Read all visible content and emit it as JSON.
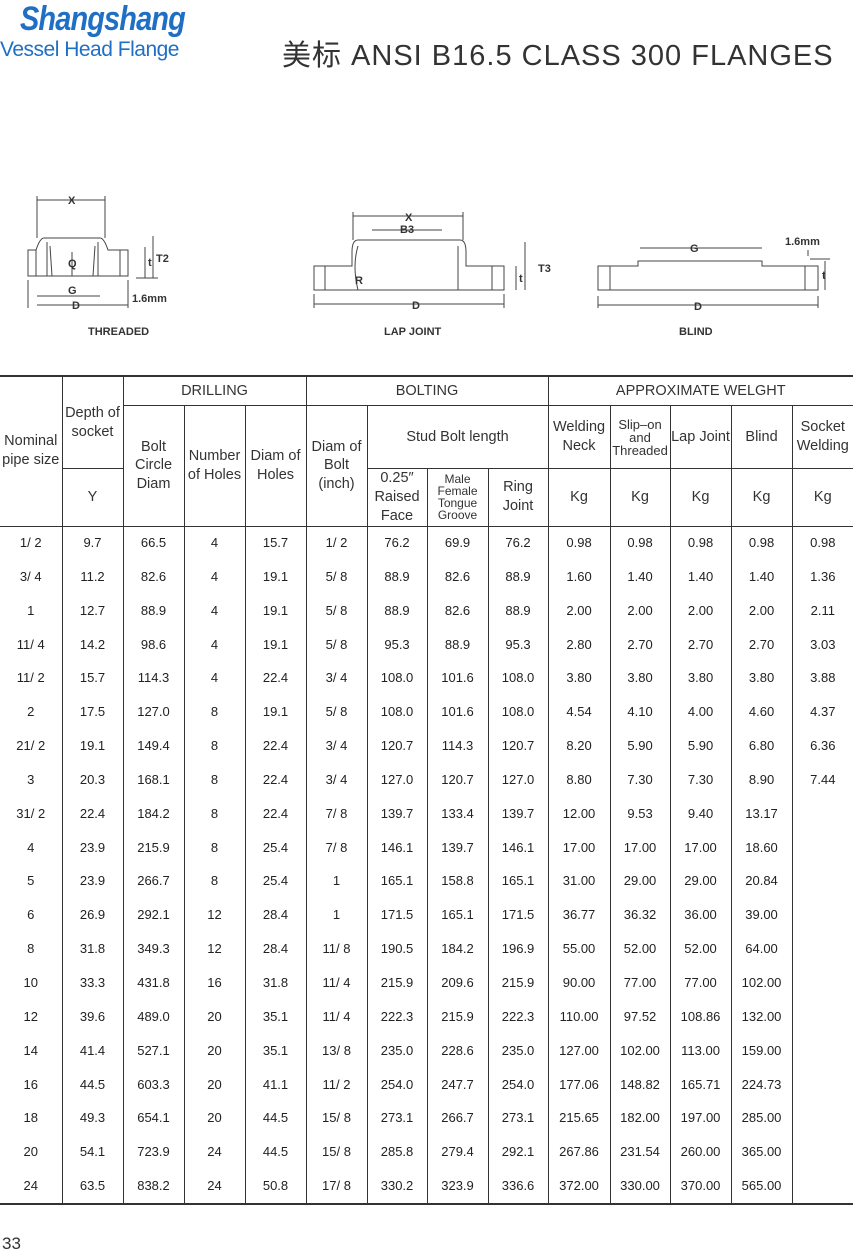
{
  "logo": {
    "brand": "Shangshang",
    "tagline_a": "Vessel Head",
    "tagline_b": "Flange"
  },
  "title": "美标 ANSI B16.5 CLASS 300 FLANGES",
  "diagrams": {
    "threaded": {
      "caption": "THREADED",
      "labels": [
        "X",
        "Q",
        "G",
        "D",
        "t",
        "T2",
        "1.6mm"
      ]
    },
    "lap_joint": {
      "caption": "LAP JOINT",
      "labels": [
        "X",
        "B3",
        "R",
        "D",
        "t",
        "T3"
      ]
    },
    "blind": {
      "caption": "BLIND",
      "labels": [
        "G",
        "1.6mm",
        "t",
        "D"
      ]
    }
  },
  "table": {
    "groups": {
      "nominal": "Nominal pipe size",
      "depth": "Depth of socket",
      "drilling": "DRILLING",
      "bolting": "BOLTING",
      "weight": "APPROXIMATE WELGHT"
    },
    "headers": {
      "y": "Y",
      "bolt_circle": "Bolt Circle Diam",
      "num_holes": "Number of Holes",
      "diam_holes": "Diam of Holes",
      "diam_bolt": "Diam of Bolt (inch)",
      "stud": "Stud Bolt length",
      "raised": "0.25″ Raised Face",
      "male": "Male Female Tongue Groove",
      "ring": "Ring Joint",
      "welding_neck": "Welding Neck",
      "slip_on": "Slip–on and Threaded",
      "lap": "Lap Joint",
      "blind": "Blind",
      "socket": "Socket Welding",
      "kg": "Kg"
    },
    "rows": [
      [
        "1/ 2",
        "9.7",
        "66.5",
        "4",
        "15.7",
        "1/ 2",
        "76.2",
        "69.9",
        "76.2",
        "0.98",
        "0.98",
        "0.98",
        "0.98",
        "0.98"
      ],
      [
        "3/ 4",
        "11.2",
        "82.6",
        "4",
        "19.1",
        "5/ 8",
        "88.9",
        "82.6",
        "88.9",
        "1.60",
        "1.40",
        "1.40",
        "1.40",
        "1.36"
      ],
      [
        "1",
        "12.7",
        "88.9",
        "4",
        "19.1",
        "5/ 8",
        "88.9",
        "82.6",
        "88.9",
        "2.00",
        "2.00",
        "2.00",
        "2.00",
        "2.11"
      ],
      [
        "11/ 4",
        "14.2",
        "98.6",
        "4",
        "19.1",
        "5/ 8",
        "95.3",
        "88.9",
        "95.3",
        "2.80",
        "2.70",
        "2.70",
        "2.70",
        "3.03"
      ],
      [
        "11/ 2",
        "15.7",
        "114.3",
        "4",
        "22.4",
        "3/ 4",
        "108.0",
        "101.6",
        "108.0",
        "3.80",
        "3.80",
        "3.80",
        "3.80",
        "3.88"
      ],
      [
        "2",
        "17.5",
        "127.0",
        "8",
        "19.1",
        "5/ 8",
        "108.0",
        "101.6",
        "108.0",
        "4.54",
        "4.10",
        "4.00",
        "4.60",
        "4.37"
      ],
      [
        "21/ 2",
        "19.1",
        "149.4",
        "8",
        "22.4",
        "3/ 4",
        "120.7",
        "114.3",
        "120.7",
        "8.20",
        "5.90",
        "5.90",
        "6.80",
        "6.36"
      ],
      [
        "3",
        "20.3",
        "168.1",
        "8",
        "22.4",
        "3/ 4",
        "127.0",
        "120.7",
        "127.0",
        "8.80",
        "7.30",
        "7.30",
        "8.90",
        "7.44"
      ],
      [
        "31/ 2",
        "22.4",
        "184.2",
        "8",
        "22.4",
        "7/ 8",
        "139.7",
        "133.4",
        "139.7",
        "12.00",
        "9.53",
        "9.40",
        "13.17",
        ""
      ],
      [
        "4",
        "23.9",
        "215.9",
        "8",
        "25.4",
        "7/ 8",
        "146.1",
        "139.7",
        "146.1",
        "17.00",
        "17.00",
        "17.00",
        "18.60",
        ""
      ],
      [
        "5",
        "23.9",
        "266.7",
        "8",
        "25.4",
        "1",
        "165.1",
        "158.8",
        "165.1",
        "31.00",
        "29.00",
        "29.00",
        "20.84",
        ""
      ],
      [
        "6",
        "26.9",
        "292.1",
        "12",
        "28.4",
        "1",
        "171.5",
        "165.1",
        "171.5",
        "36.77",
        "36.32",
        "36.00",
        "39.00",
        ""
      ],
      [
        "8",
        "31.8",
        "349.3",
        "12",
        "28.4",
        "11/ 8",
        "190.5",
        "184.2",
        "196.9",
        "55.00",
        "52.00",
        "52.00",
        "64.00",
        ""
      ],
      [
        "10",
        "33.3",
        "431.8",
        "16",
        "31.8",
        "11/ 4",
        "215.9",
        "209.6",
        "215.9",
        "90.00",
        "77.00",
        "77.00",
        "102.00",
        ""
      ],
      [
        "12",
        "39.6",
        "489.0",
        "20",
        "35.1",
        "11/ 4",
        "222.3",
        "215.9",
        "222.3",
        "110.00",
        "97.52",
        "108.86",
        "132.00",
        ""
      ],
      [
        "14",
        "41.4",
        "527.1",
        "20",
        "35.1",
        "13/ 8",
        "235.0",
        "228.6",
        "235.0",
        "127.00",
        "102.00",
        "113.00",
        "159.00",
        ""
      ],
      [
        "16",
        "44.5",
        "603.3",
        "20",
        "41.1",
        "11/ 2",
        "254.0",
        "247.7",
        "254.0",
        "177.06",
        "148.82",
        "165.71",
        "224.73",
        ""
      ],
      [
        "18",
        "49.3",
        "654.1",
        "20",
        "44.5",
        "15/ 8",
        "273.1",
        "266.7",
        "273.1",
        "215.65",
        "182.00",
        "197.00",
        "285.00",
        ""
      ],
      [
        "20",
        "54.1",
        "723.9",
        "24",
        "44.5",
        "15/ 8",
        "285.8",
        "279.4",
        "292.1",
        "267.86",
        "231.54",
        "260.00",
        "365.00",
        ""
      ],
      [
        "24",
        "63.5",
        "838.2",
        "24",
        "50.8",
        "17/ 8",
        "330.2",
        "323.9",
        "336.6",
        "372.00",
        "330.00",
        "370.00",
        "565.00",
        ""
      ]
    ]
  },
  "page_number": "33"
}
